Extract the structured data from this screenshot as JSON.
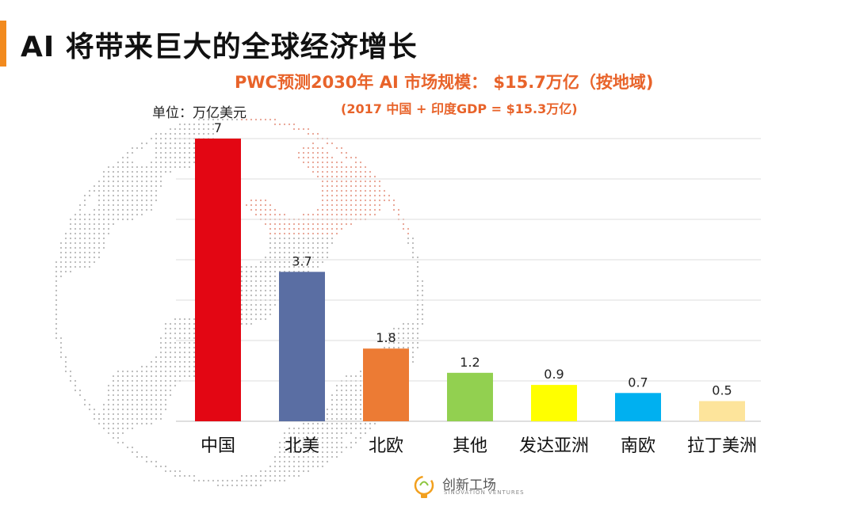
{
  "slide": {
    "title": "AI 将带来巨大的全球经济增长",
    "accent_color": "#f28a1e"
  },
  "chart_data": {
    "type": "bar",
    "title": "PWC预测2030年 AI 市场规模： $15.7万亿（按地域)",
    "subtitle": "(2017 中国 + 印度GDP = $15.3万亿)",
    "unit_label": "单位：万亿美元",
    "categories": [
      "中国",
      "北美",
      "北欧",
      "其他",
      "发达亚洲",
      "南欧",
      "拉丁美洲"
    ],
    "values": [
      7,
      3.7,
      1.8,
      1.2,
      0.9,
      0.7,
      0.5
    ],
    "value_labels": [
      "7",
      "3.7",
      "1.8",
      "1.2",
      "0.9",
      "0.7",
      "0.5"
    ],
    "colors": [
      "#e30613",
      "#5a6ea3",
      "#ec7b34",
      "#92d050",
      "#ffff00",
      "#00b0f0",
      "#fde49b"
    ],
    "ylim": [
      0,
      7
    ],
    "grid": true,
    "title_color": "#e8632a"
  },
  "logo": {
    "name": "创新工场",
    "sub": "SINOVATION VENTURES"
  }
}
